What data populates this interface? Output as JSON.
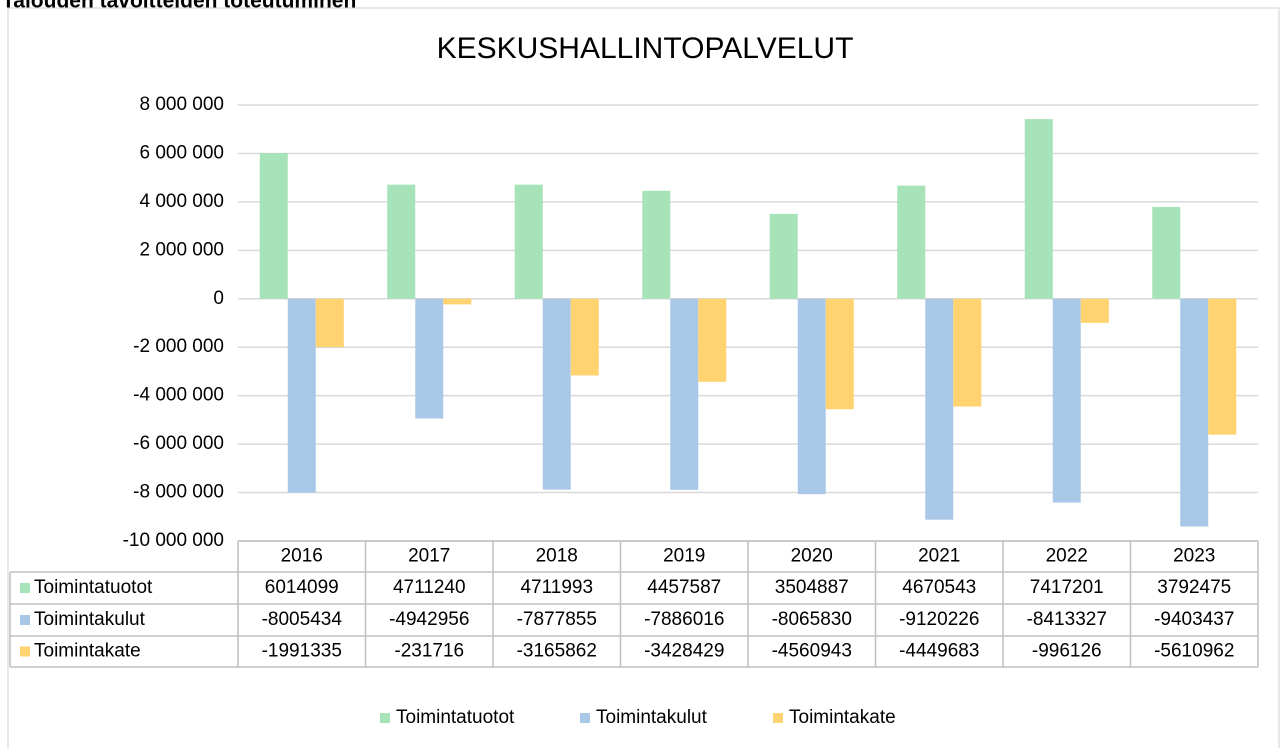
{
  "heading": "Talouden tavoitteiden toteutuminen",
  "chart_data": {
    "type": "bar",
    "title": "KESKUSHALLINTOPALVELUT",
    "categories": [
      "2016",
      "2017",
      "2018",
      "2019",
      "2020",
      "2021",
      "2022",
      "2023"
    ],
    "series": [
      {
        "name": "Toimintatuotot",
        "color": "#a6e3b8",
        "values": [
          6014099,
          4711240,
          4711993,
          4457587,
          3504887,
          4670543,
          7417201,
          3792475
        ]
      },
      {
        "name": "Toimintakulut",
        "color": "#a9c8e8",
        "values": [
          -8005434,
          -4942956,
          -7877855,
          -7886016,
          -8065830,
          -9120226,
          -8413327,
          -9403437
        ]
      },
      {
        "name": "Toimintakate",
        "color": "#ffd470",
        "values": [
          -1991335,
          -231716,
          -3165862,
          -3428429,
          -4560943,
          -4449683,
          -996126,
          -5610962
        ]
      }
    ],
    "ylim": [
      -10000000,
      8000000
    ],
    "yticks": [
      {
        "value": -10000000,
        "label": "-10 000 000"
      },
      {
        "value": -8000000,
        "label": "-8 000 000"
      },
      {
        "value": -6000000,
        "label": "-6 000 000"
      },
      {
        "value": -4000000,
        "label": "-4 000 000"
      },
      {
        "value": -2000000,
        "label": "-2 000 000"
      },
      0,
      {
        "value": 2000000,
        "label": "2 000 000"
      },
      {
        "value": 4000000,
        "label": "4 000 000"
      },
      {
        "value": 6000000,
        "label": "6 000 000"
      },
      {
        "value": 8000000,
        "label": "8 000 000"
      }
    ],
    "grid": true,
    "legend": "bottom"
  }
}
